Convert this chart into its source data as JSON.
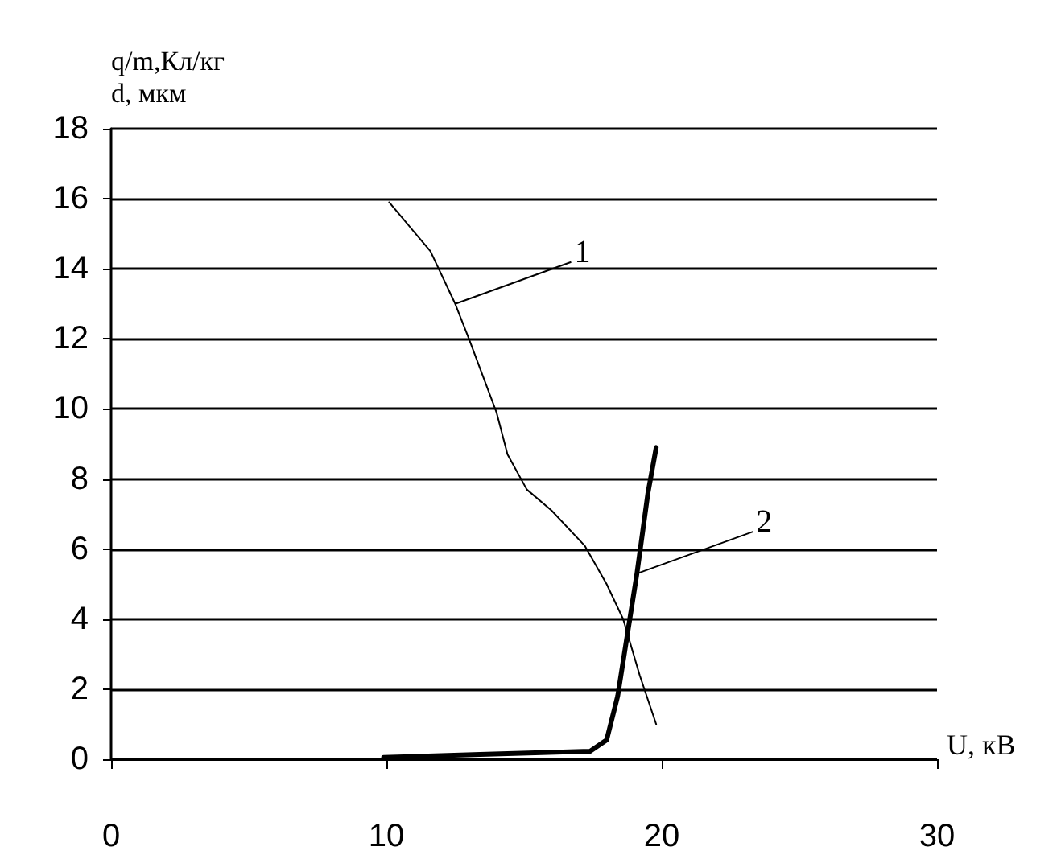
{
  "chart_data": {
    "type": "line",
    "ylabel": "q/m,Кл/кг\nd, мкм",
    "xlabel": "U, кВ",
    "xlim": [
      0,
      30
    ],
    "xticks": [
      0,
      10,
      20,
      30
    ],
    "ylim": [
      0,
      18
    ],
    "yticks": [
      0,
      2,
      4,
      6,
      8,
      10,
      12,
      14,
      16,
      18
    ],
    "grid": "y",
    "marker": "none",
    "line_style": "solid",
    "series": [
      {
        "color": "#000000",
        "x": [
          10.1,
          11.6,
          12.5,
          13.0,
          14.0,
          14.4,
          15.1,
          16.0,
          17.2,
          18.0,
          18.6,
          19.2,
          19.8
        ],
        "values": [
          15.9,
          14.5,
          13.0,
          12.0,
          9.9,
          8.7,
          7.7,
          7.1,
          6.1,
          5.0,
          4.0,
          2.4,
          1.0
        ]
      },
      {
        "color": "#000000",
        "x": [
          9.9,
          13.4,
          17.4,
          18.0,
          18.4,
          18.7,
          19.1,
          19.5,
          19.8
        ],
        "values": [
          0.05,
          0.14,
          0.23,
          0.55,
          1.8,
          3.3,
          5.3,
          7.6,
          8.9
        ]
      }
    ],
    "annotations": [
      {
        "text": "1",
        "x": 12.5,
        "y": 13.0
      },
      {
        "text": "2",
        "x": 19.1,
        "y": 5.3
      }
    ]
  }
}
